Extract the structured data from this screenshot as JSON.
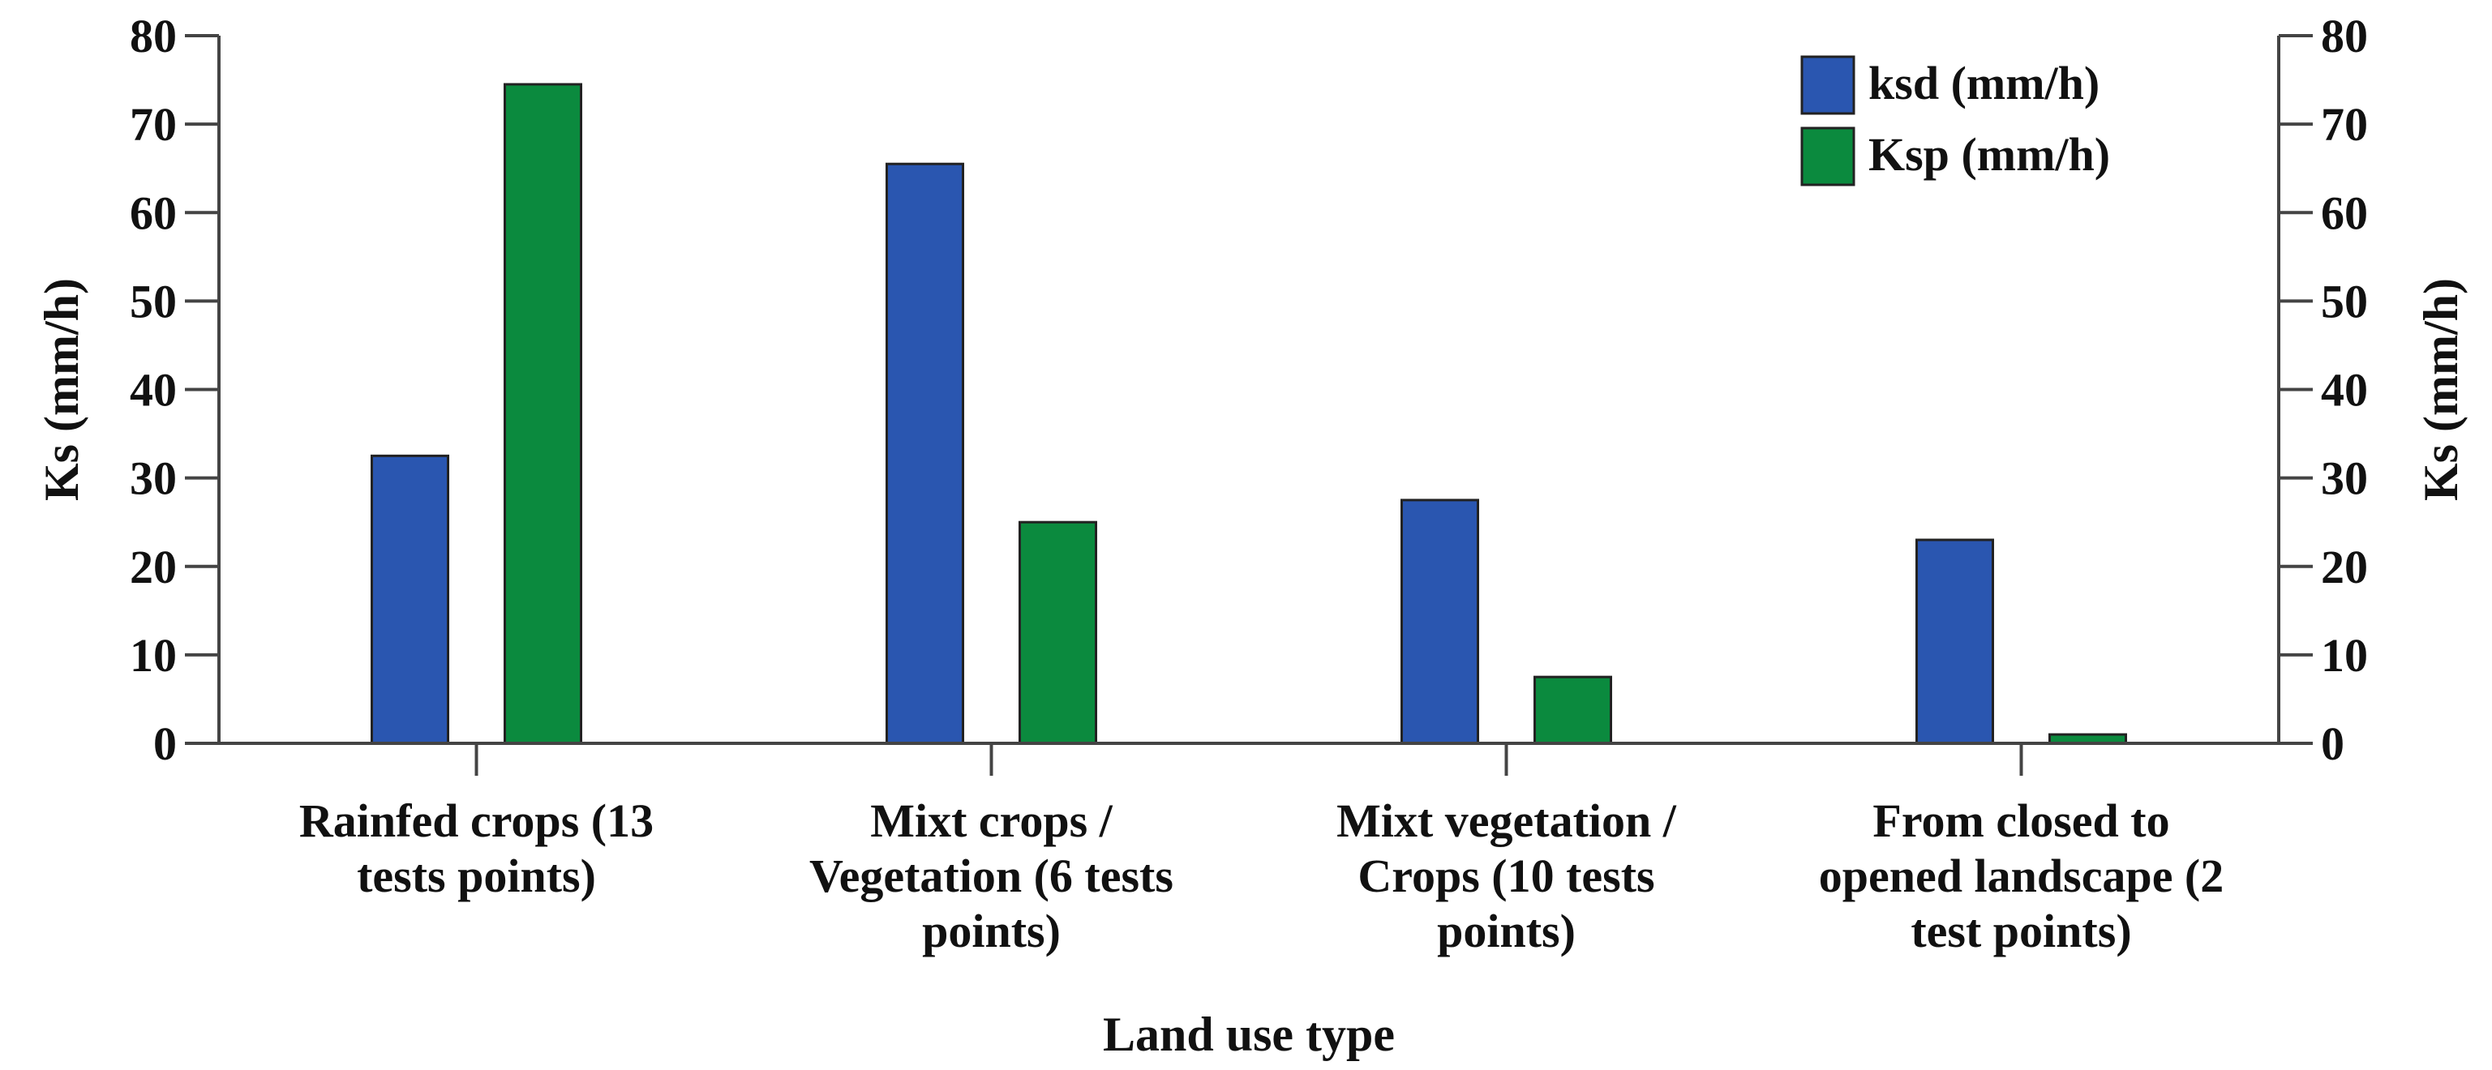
{
  "chart_data": {
    "type": "bar",
    "title": "",
    "xlabel": "Land use type",
    "ylabel": "Ks (mm/h)",
    "ylabel_right": "Ks (mm/h)",
    "ylim": [
      0,
      80
    ],
    "yticks": [
      0,
      10,
      20,
      30,
      40,
      50,
      60,
      70,
      80
    ],
    "ytick_labels": [
      "0",
      "10",
      "20",
      "30",
      "40",
      "50",
      "60",
      "70",
      "80"
    ],
    "grid": false,
    "legend_position": "top-right",
    "categories": [
      [
        "Rainfed crops (13",
        "tests points)"
      ],
      [
        "Mixt crops /",
        "Vegetation (6 tests",
        "points)"
      ],
      [
        "Mixt vegetation /",
        "Crops (10 tests",
        "points)"
      ],
      [
        "From closed to",
        "opened landscape (2",
        "test points)"
      ]
    ],
    "series": [
      {
        "name": "ksd (mm/h)",
        "color": "#2a56b0",
        "values": [
          32.5,
          65.5,
          27.5,
          23.0
        ]
      },
      {
        "name": "Ksp (mm/h)",
        "color": "#0b8a3e",
        "values": [
          74.5,
          25.0,
          7.5,
          1.0
        ]
      }
    ]
  }
}
